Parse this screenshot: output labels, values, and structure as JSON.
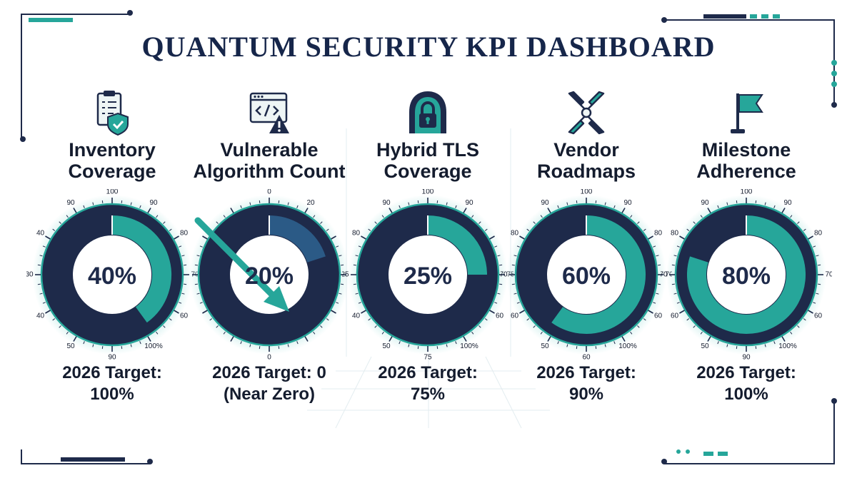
{
  "title": "QUANTUM SECURITY KPI DASHBOARD",
  "colors": {
    "navy": "#1e2a4a",
    "teal": "#26a69a",
    "steel": "#2b5a86",
    "text": "#141c2e",
    "glow": "#bfe9e6"
  },
  "chart_data": {
    "type": "gauge",
    "kpis": [
      {
        "icon": "checklist-shield-icon",
        "label_lines": [
          "Inventory",
          "Coverage"
        ],
        "value": 40,
        "value_label": "40%",
        "ticks": [
          "100",
          "90",
          "80",
          "70",
          "60",
          "100%",
          "90",
          "50",
          "40",
          "30",
          "40",
          "90"
        ],
        "target_lines": [
          "2026 Target:",
          "100%"
        ]
      },
      {
        "icon": "code-alert-icon",
        "label_lines": [
          "Vulnerable",
          "Algorithm Count"
        ],
        "value": 20,
        "value_label": "20%",
        "ticks": [
          "0",
          "20",
          "",
          "",
          "",
          "",
          "0",
          "",
          "",
          "",
          "",
          ""
        ],
        "trend": "decreasing",
        "target_lines": [
          "2026 Target: 0",
          "(Near Zero)"
        ]
      },
      {
        "icon": "padlock-icon",
        "label_lines": [
          "Hybrid TLS",
          "Coverage"
        ],
        "value": 25,
        "value_label": "25%",
        "ticks": [
          "100",
          "90",
          "",
          "75",
          "60",
          "100%",
          "75",
          "50",
          "40",
          "25",
          "80",
          "90"
        ],
        "target_lines": [
          "2026 Target:",
          "75%"
        ]
      },
      {
        "icon": "handshake-icon",
        "label_lines": [
          "Vendor",
          "Roadmaps"
        ],
        "value": 60,
        "value_label": "60%",
        "ticks": [
          "100",
          "90",
          "80",
          "70",
          "60",
          "100%",
          "60",
          "50",
          "60",
          "70",
          "80",
          "90"
        ],
        "target_lines": [
          "2026 Target:",
          "90%"
        ]
      },
      {
        "icon": "flag-icon",
        "label_lines": [
          "Milestone",
          "Adherence"
        ],
        "value": 80,
        "value_label": "80%",
        "ticks": [
          "100",
          "90",
          "80",
          "70",
          "60",
          "100%",
          "90",
          "50",
          "60",
          "70",
          "80",
          "90"
        ],
        "target_lines": [
          "2026 Target:",
          "100%"
        ]
      }
    ]
  }
}
